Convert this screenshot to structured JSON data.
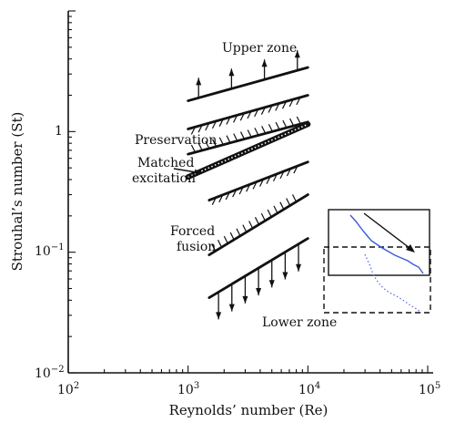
{
  "chart_data": {
    "type": "diagram",
    "xlabel": "Reynolds’ number (Re)",
    "ylabel": "Strouhal’s number (St)",
    "xscale": "log",
    "yscale": "log",
    "xlim": [
      100,
      100000
    ],
    "ylim": [
      0.01,
      10
    ],
    "x_ticks": [
      {
        "value": 100,
        "base": "10",
        "exp": "2"
      },
      {
        "value": 1000,
        "base": "10",
        "exp": "3"
      },
      {
        "value": 10000,
        "base": "10",
        "exp": "4"
      },
      {
        "value": 100000,
        "base": "10",
        "exp": "5"
      }
    ],
    "y_ticks": [
      {
        "value": 0.01,
        "base": "10",
        "exp": "−2"
      },
      {
        "value": 0.1,
        "base": "10",
        "exp": "−1"
      },
      {
        "value": 1,
        "text": "1"
      }
    ],
    "bands": [
      {
        "id": "upper-zone-boundary",
        "style": "arrows-up",
        "x": [
          1000,
          10000
        ],
        "y": [
          1.8,
          3.4
        ]
      },
      {
        "id": "preservation-upper",
        "style": "hatch-down",
        "x": [
          1000,
          10000
        ],
        "y": [
          1.05,
          2.0
        ]
      },
      {
        "id": "preservation-lower",
        "style": "hatch-up",
        "x": [
          1000,
          10000
        ],
        "y": [
          0.65,
          1.2
        ]
      },
      {
        "id": "matched-excitation",
        "style": "dotted-thick",
        "x": [
          1000,
          10000
        ],
        "y": [
          0.42,
          1.15
        ]
      },
      {
        "id": "forced-fusion-upper",
        "style": "hatch-down",
        "x": [
          1500,
          10000
        ],
        "y": [
          0.27,
          0.56
        ]
      },
      {
        "id": "forced-fusion-lower",
        "style": "hatch-up",
        "x": [
          1500,
          10000
        ],
        "y": [
          0.095,
          0.3
        ]
      },
      {
        "id": "lower-zone-boundary",
        "style": "arrows-down",
        "x": [
          1500,
          10000
        ],
        "y": [
          0.042,
          0.13
        ]
      }
    ],
    "zone_labels": {
      "upper": "Upper zone",
      "preservation": "Preservation",
      "matched": [
        "Matched",
        "excitation"
      ],
      "forced": [
        "Forced",
        "fusion"
      ],
      "lower": "Lower zone"
    },
    "inset": {
      "solid_color": "#3a5bd9",
      "dotted_color": "#5566dd"
    }
  }
}
